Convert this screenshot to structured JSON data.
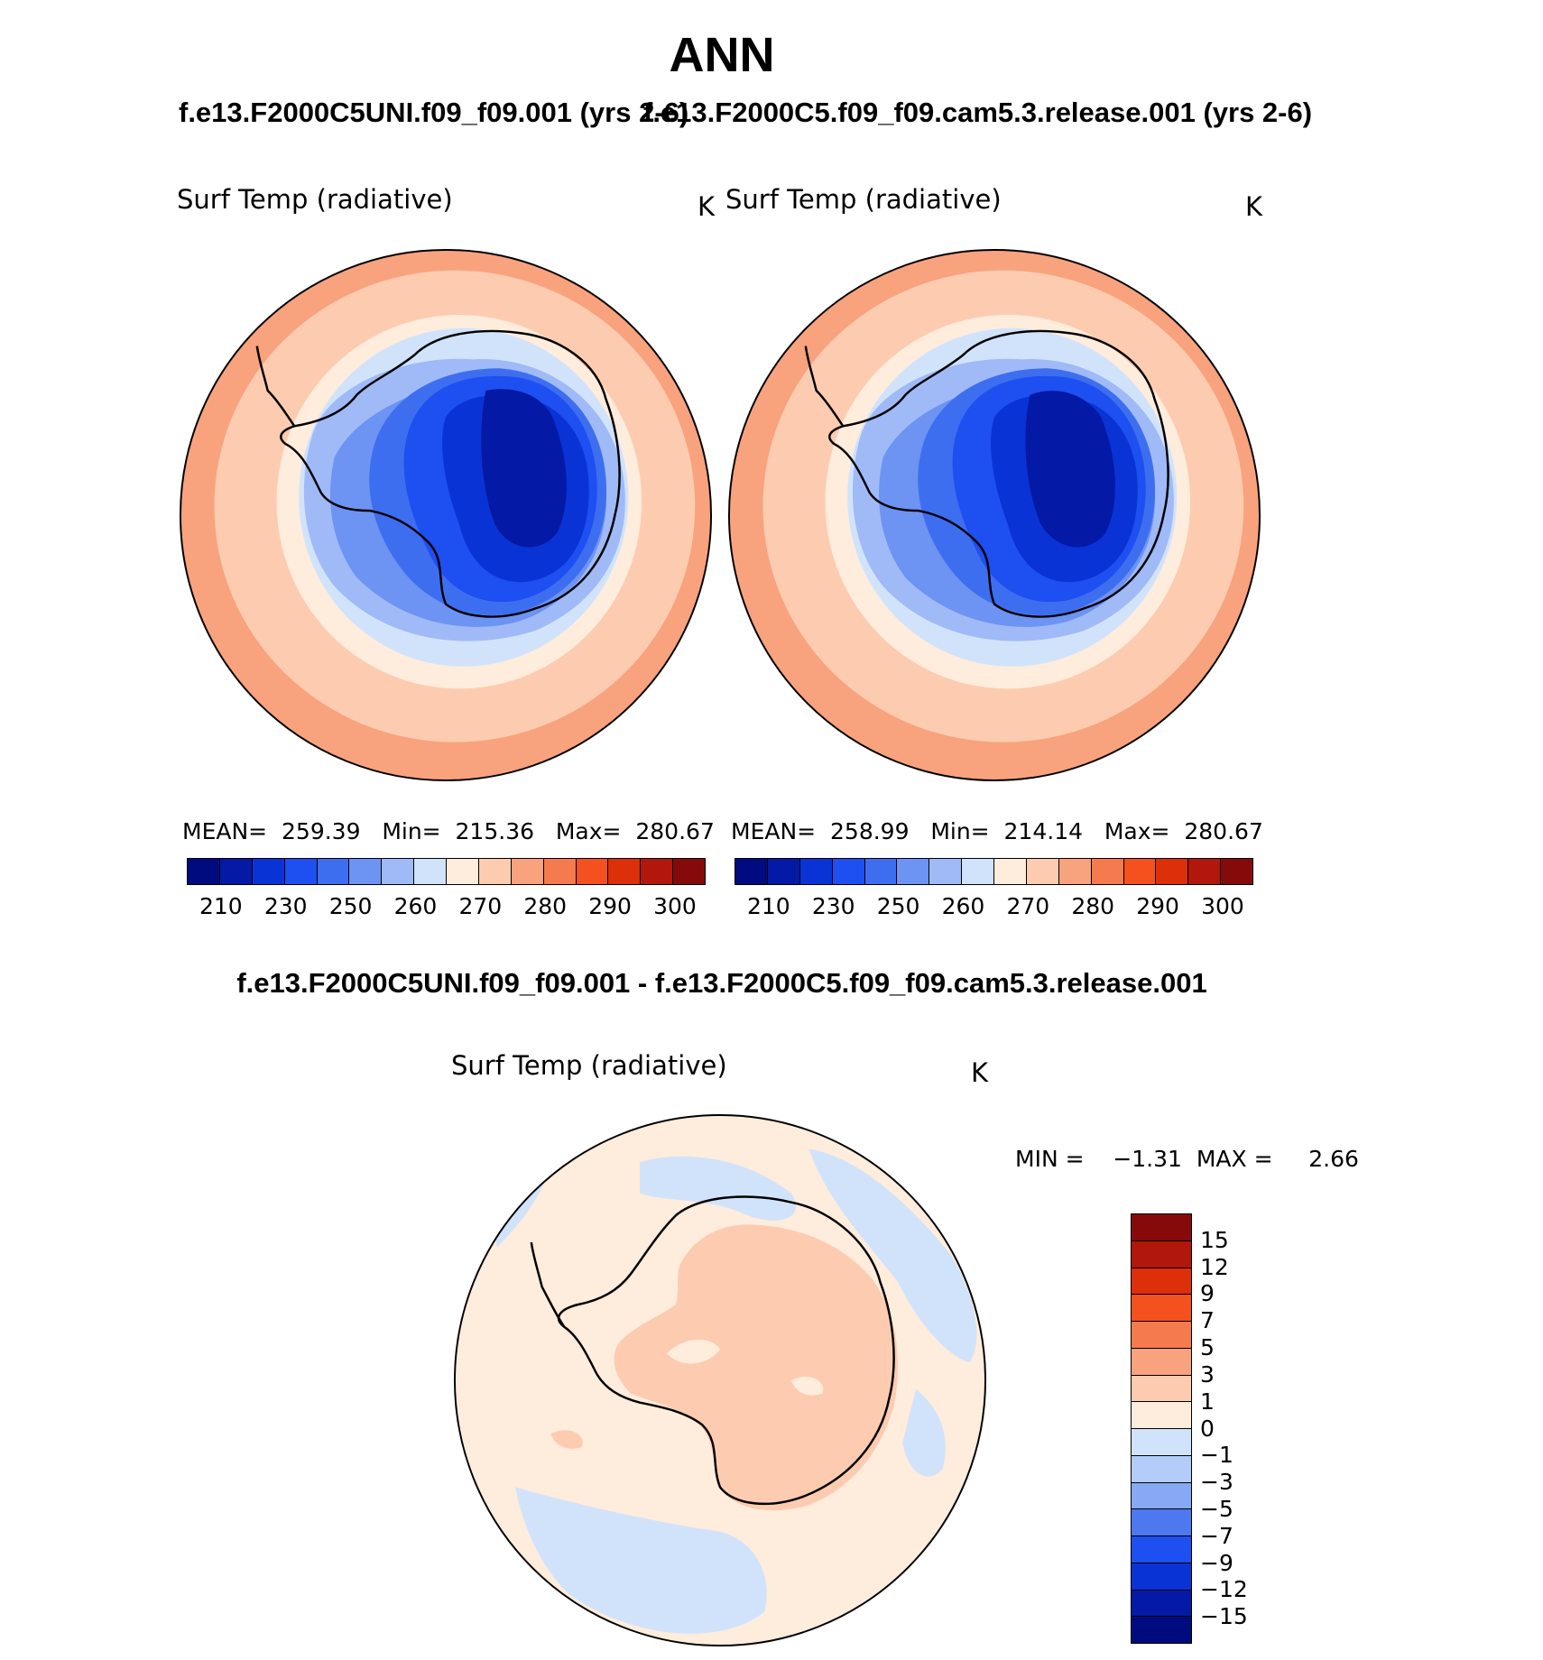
{
  "title": "ANN",
  "panel_left": {
    "case": "f.e13.F2000C5UNI.f09_f09.001 (yrs 2-6)",
    "field": "Surf Temp (radiative)",
    "units": "K",
    "stats": "MEAN=  259.39   Min=  215.36   Max=  280.67",
    "ticks": [
      "210",
      "230",
      "250",
      "260",
      "270",
      "280",
      "290",
      "300"
    ],
    "colors": [
      "#000b80",
      "#0419a6",
      "#0a33d6",
      "#1e4ff0",
      "#3e6ef0",
      "#6d93f3",
      "#9fbaf7",
      "#d1e3fb",
      "#feecdc",
      "#fdccb0",
      "#f9a27e",
      "#f57a4e",
      "#f4511e",
      "#dc2f0a",
      "#b1170a",
      "#870a0a"
    ]
  },
  "panel_right": {
    "case": "f.e13.F2000C5.f09_f09.cam5.3.release.001 (yrs 2-6)",
    "field": "Surf Temp (radiative)",
    "units": "K",
    "stats": "MEAN=  258.99   Min=  214.14   Max=  280.67",
    "ticks": [
      "210",
      "230",
      "250",
      "260",
      "270",
      "280",
      "290",
      "300"
    ]
  },
  "panel_diff": {
    "case": "f.e13.F2000C5UNI.f09_f09.001 - f.e13.F2000C5.f09_f09.cam5.3.release.001",
    "field": "Surf Temp (radiative)",
    "units": "K",
    "minmax": "MIN =    −1.31  MAX =     2.66",
    "ticks": [
      "15",
      "12",
      "9",
      "7",
      "5",
      "3",
      "1",
      "0",
      "−1",
      "−3",
      "−5",
      "−7",
      "−9",
      "−12",
      "−15"
    ],
    "colors": [
      "#870a0a",
      "#b1170a",
      "#dc2f0a",
      "#f4511e",
      "#f57a4e",
      "#f9a27e",
      "#fdccb0",
      "#feecdc",
      "#d1e3fb",
      "#b4ccf9",
      "#87a9f5",
      "#4e78f0",
      "#1e4ff0",
      "#0a33d6",
      "#0419a6",
      "#000b80"
    ]
  }
}
